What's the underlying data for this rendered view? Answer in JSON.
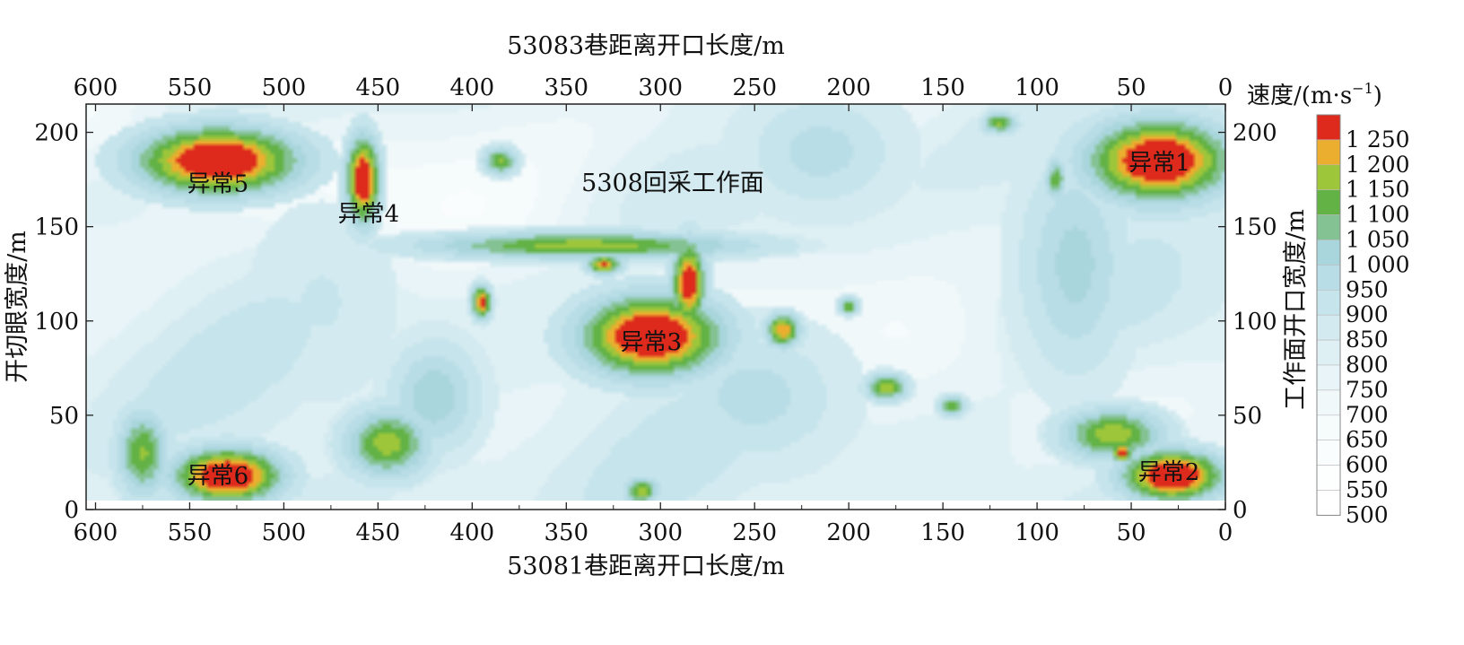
{
  "chart_data": {
    "type": "heatmap",
    "title": "",
    "top_axis_label": "53083巷距离开口长度/m",
    "bottom_axis_label": "53081巷距离开口长度/m",
    "left_axis_label": "开切眼宽度/m",
    "right_axis_label": "工作面开口宽度/m",
    "x_reversed": true,
    "xlim": [
      605,
      0
    ],
    "ylim": [
      0,
      215
    ],
    "x_ticks": [
      "600",
      "550",
      "500",
      "450",
      "400",
      "350",
      "300",
      "250",
      "200",
      "150",
      "100",
      "50",
      "0"
    ],
    "x_tick_values": [
      600,
      550,
      500,
      450,
      400,
      350,
      300,
      250,
      200,
      150,
      100,
      50,
      0
    ],
    "y_ticks": [
      "0",
      "50",
      "100",
      "150",
      "200"
    ],
    "y_tick_values": [
      0,
      50,
      100,
      150,
      200
    ],
    "face_label": "5308回采工作面",
    "colorbar": {
      "title_main": "速度/(m·s",
      "title_sup": "−1",
      "title_close": ")",
      "levels": [
        {
          "label": "1 250",
          "value": 1250,
          "color": "#dd2a1d"
        },
        {
          "label": "1 200",
          "value": 1200,
          "color": "#ecae2f"
        },
        {
          "label": "1 150",
          "value": 1150,
          "color": "#9dc63a"
        },
        {
          "label": "1 100",
          "value": 1100,
          "color": "#62b246"
        },
        {
          "label": "1 050",
          "value": 1050,
          "color": "#84c293"
        },
        {
          "label": "1 000",
          "value": 1000,
          "color": "#a9d6dc"
        },
        {
          "label": "950",
          "value": 950,
          "color": "#b9dde6"
        },
        {
          "label": "900",
          "value": 900,
          "color": "#c6e4ec"
        },
        {
          "label": "850",
          "value": 850,
          "color": "#d3eaf0"
        },
        {
          "label": "800",
          "value": 800,
          "color": "#def0f4"
        },
        {
          "label": "750",
          "value": 750,
          "color": "#e8f4f7"
        },
        {
          "label": "700",
          "value": 700,
          "color": "#f0f8fa"
        },
        {
          "label": "650",
          "value": 650,
          "color": "#f6fbfc"
        },
        {
          "label": "600",
          "value": 600,
          "color": "#fafdfd"
        },
        {
          "label": "550",
          "value": 550,
          "color": "#fdfefe"
        },
        {
          "label": "500",
          "value": 500,
          "color": "#ffffff"
        }
      ]
    },
    "background_value": 850,
    "anomalies": [
      {
        "label": "异常1",
        "label_x": 35,
        "label_y": 184,
        "x": 35,
        "y": 185,
        "rx": 42,
        "ry": 24,
        "peak": 1300
      },
      {
        "label": "异常2",
        "label_x": 30,
        "label_y": 20,
        "x": 28,
        "y": 18,
        "rx": 30,
        "ry": 15,
        "peak": 1300
      },
      {
        "label": "异常3",
        "label_x": 305,
        "label_y": 89,
        "x": 305,
        "y": 92,
        "rx": 42,
        "ry": 24,
        "peak": 1300
      },
      {
        "label": "异常4",
        "label_x": 455,
        "label_y": 157,
        "x": 458,
        "y": 175,
        "rx": 10,
        "ry": 26,
        "peak": 1280
      },
      {
        "label": "异常5",
        "label_x": 535,
        "label_y": 173,
        "x": 535,
        "y": 185,
        "rx": 48,
        "ry": 20,
        "peak": 1300
      },
      {
        "label": "异常6",
        "label_x": 535,
        "label_y": 18,
        "x": 530,
        "y": 18,
        "rx": 32,
        "ry": 16,
        "peak": 1300
      }
    ],
    "features": [
      {
        "x": 340,
        "y": 140,
        "rx": 95,
        "ry": 8,
        "peak": 1140
      },
      {
        "x": 285,
        "y": 120,
        "rx": 10,
        "ry": 25,
        "peak": 1260
      },
      {
        "x": 330,
        "y": 130,
        "rx": 10,
        "ry": 6,
        "peak": 1200
      },
      {
        "x": 395,
        "y": 110,
        "rx": 6,
        "ry": 10,
        "peak": 1230
      },
      {
        "x": 235,
        "y": 95,
        "rx": 10,
        "ry": 10,
        "peak": 1200
      },
      {
        "x": 180,
        "y": 65,
        "rx": 12,
        "ry": 8,
        "peak": 1150
      },
      {
        "x": 200,
        "y": 108,
        "rx": 6,
        "ry": 5,
        "peak": 1120
      },
      {
        "x": 145,
        "y": 55,
        "rx": 8,
        "ry": 6,
        "peak": 1110
      },
      {
        "x": 80,
        "y": 130,
        "rx": 30,
        "ry": 60,
        "peak": 1000
      },
      {
        "x": 420,
        "y": 60,
        "rx": 25,
        "ry": 30,
        "peak": 1020
      },
      {
        "x": 445,
        "y": 35,
        "rx": 25,
        "ry": 20,
        "peak": 1140
      },
      {
        "x": 575,
        "y": 30,
        "rx": 15,
        "ry": 25,
        "peak": 1120
      },
      {
        "x": 60,
        "y": 40,
        "rx": 30,
        "ry": 15,
        "peak": 1150
      },
      {
        "x": 55,
        "y": 30,
        "rx": 6,
        "ry": 5,
        "peak": 1280
      },
      {
        "x": 385,
        "y": 185,
        "rx": 10,
        "ry": 8,
        "peak": 1120
      },
      {
        "x": 90,
        "y": 175,
        "rx": 6,
        "ry": 12,
        "peak": 1100
      },
      {
        "x": 120,
        "y": 205,
        "rx": 10,
        "ry": 6,
        "peak": 1120
      },
      {
        "x": 215,
        "y": 190,
        "rx": 40,
        "ry": 30,
        "peak": 960
      },
      {
        "x": 310,
        "y": 10,
        "rx": 10,
        "ry": 8,
        "peak": 1140
      },
      {
        "x": 480,
        "y": 110,
        "rx": 30,
        "ry": 40,
        "peak": 900
      },
      {
        "x": 250,
        "y": 60,
        "rx": 45,
        "ry": 35,
        "peak": 960
      }
    ]
  }
}
